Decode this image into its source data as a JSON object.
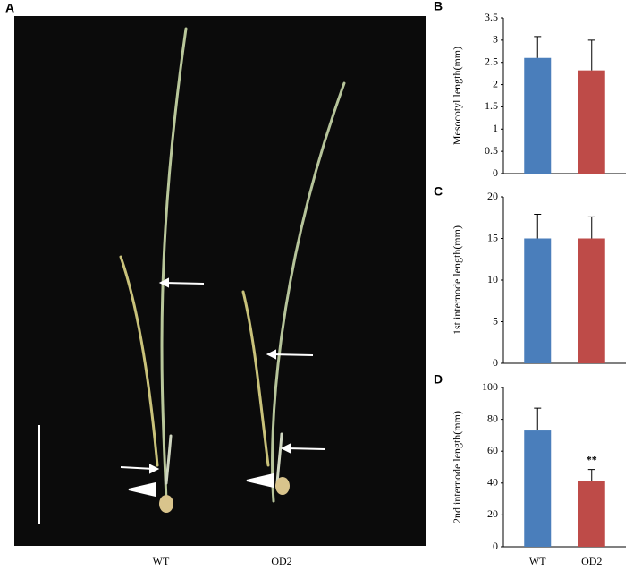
{
  "photo": {
    "panel": "A",
    "labels": [
      "WT",
      "OD2"
    ]
  },
  "chart_data": [
    {
      "type": "bar",
      "panel": "B",
      "y_label": "Mesocotyl length(mm)",
      "categories": [
        null,
        null
      ],
      "values": [
        2.6,
        2.32
      ],
      "errors": [
        0.48,
        0.68
      ],
      "colors": [
        "#4a7ebb",
        "#be4b48"
      ],
      "ylim": [
        0,
        3.5
      ],
      "yticks": [
        0,
        0.5,
        1,
        1.5,
        2,
        2.5,
        3,
        3.5
      ]
    },
    {
      "type": "bar",
      "panel": "C",
      "y_label": "1st internode length(mm)",
      "categories": [
        null,
        null
      ],
      "values": [
        15,
        15
      ],
      "errors": [
        2.9,
        2.6
      ],
      "colors": [
        "#4a7ebb",
        "#be4b48"
      ],
      "ylim": [
        0,
        20
      ],
      "yticks": [
        0,
        5,
        10,
        15,
        20
      ]
    },
    {
      "type": "bar",
      "panel": "D",
      "y_label": "2nd internode length(mm)",
      "categories": [
        "WT",
        "OD2"
      ],
      "values": [
        73,
        41.5
      ],
      "errors": [
        14,
        7
      ],
      "colors": [
        "#4a7ebb",
        "#be4b48"
      ],
      "annotations": [
        null,
        "**"
      ],
      "ylim": [
        0,
        100
      ],
      "yticks": [
        0,
        20,
        40,
        60,
        80,
        100
      ]
    }
  ]
}
